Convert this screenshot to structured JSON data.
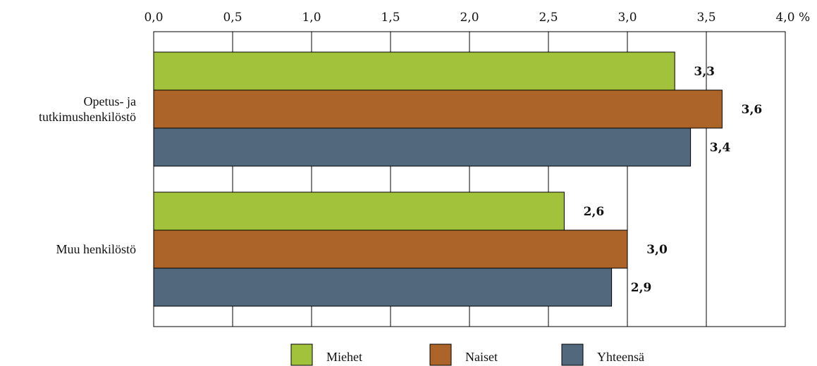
{
  "chart_data": {
    "type": "bar",
    "orientation": "horizontal",
    "unit": "%",
    "xlim": [
      0,
      4.0
    ],
    "ticks": [
      "0,0",
      "0,5",
      "1,0",
      "1,5",
      "2,0",
      "2,5",
      "3,0",
      "3,5",
      "4,0"
    ],
    "tick_values": [
      0,
      0.5,
      1.0,
      1.5,
      2.0,
      2.5,
      3.0,
      3.5,
      4.0
    ],
    "grid": true,
    "legend_position": "bottom",
    "categories": [
      [
        "Opetus- ja",
        "tutkimushenkilöstö"
      ],
      [
        "Muu henkilöstö"
      ]
    ],
    "series": [
      {
        "name": "Miehet",
        "color": "#a3c23c",
        "values": [
          3.3,
          2.6
        ],
        "labels": [
          "3,3",
          "2,6"
        ]
      },
      {
        "name": "Naiset",
        "color": "#ad6428",
        "values": [
          3.6,
          3.0
        ],
        "labels": [
          "3,6",
          "3,0"
        ]
      },
      {
        "name": "Yhteensä",
        "color": "#51687d",
        "values": [
          3.4,
          2.9
        ],
        "labels": [
          "3,4",
          "2,9"
        ]
      }
    ]
  }
}
